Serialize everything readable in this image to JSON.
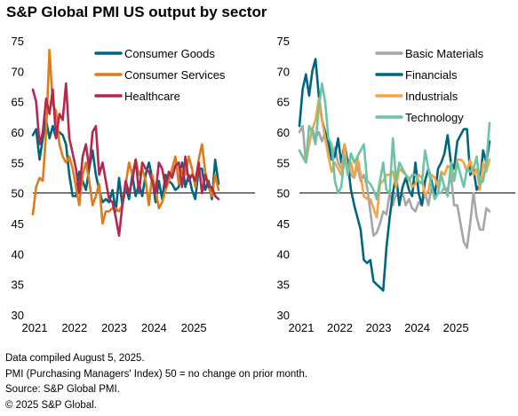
{
  "title": "S&P Global PMI US output by sector",
  "notes": {
    "compiled": "Data compiled August 5, 2025.",
    "pmi_def": "PMI (Purchasing Managers' Index) 50 =  no change on prior month.",
    "source": "Source: S&P Global PMI.",
    "copyright": "© 2025 S&P Global."
  },
  "chart_data": [
    {
      "type": "line",
      "ylim": [
        30,
        75
      ],
      "yticks": [
        30,
        35,
        40,
        45,
        50,
        55,
        60,
        65,
        70,
        75
      ],
      "xticks": [
        "2021",
        "2022",
        "2023",
        "2024",
        "2025"
      ],
      "reference_line": 50,
      "legend_position": "top-right",
      "series": [
        {
          "name": "Consumer Goods",
          "color": "#00667f",
          "values": [
            59.5,
            60.5,
            55.5,
            59,
            62,
            59,
            61,
            59,
            60,
            59.5,
            58,
            53,
            49.5,
            49.5,
            53.5,
            52,
            50.5,
            54,
            57,
            53,
            50.5,
            48.5,
            49,
            48.5,
            50.5,
            47,
            52.5,
            48,
            51,
            49,
            53,
            49.5,
            51.5,
            49.5,
            53,
            55,
            52.5,
            48.5,
            52,
            49,
            53,
            52,
            51.5,
            50.5,
            51,
            55,
            51,
            53,
            50.5,
            49,
            54,
            54,
            50.5,
            52,
            49,
            55.5,
            51.5
          ]
        },
        {
          "name": "Consumer Services",
          "color": "#e07b1a",
          "values": [
            46.5,
            51,
            52.5,
            52,
            60,
            73.5,
            64.5,
            63.5,
            58,
            56,
            55,
            56,
            54,
            51,
            48,
            53,
            55,
            52,
            48,
            49.5,
            51.5,
            45,
            47,
            47,
            47.5,
            47.5,
            47,
            48,
            51.5,
            55,
            53,
            55.5,
            53,
            54,
            52,
            48,
            53,
            50.5,
            47.5,
            48.5,
            50.5,
            52,
            54,
            56,
            51.5,
            54,
            53,
            56,
            54,
            51,
            55.5,
            58,
            53.5,
            51,
            49.5,
            53,
            50.5
          ]
        },
        {
          "name": "Healthcare",
          "color": "#b3294e",
          "values": [
            67,
            65,
            58,
            60,
            65.5,
            63,
            67,
            59,
            63,
            62,
            68,
            59,
            56.5,
            54,
            50,
            56,
            58,
            54,
            60,
            61,
            53,
            55,
            52,
            49,
            48.5,
            46,
            43,
            48,
            52,
            50,
            52,
            55.5,
            50,
            55,
            54,
            53.5,
            52,
            50,
            55,
            54,
            51,
            53.5,
            52.5,
            54.5,
            55,
            51,
            56,
            52,
            53,
            52,
            55,
            50,
            53,
            51,
            51,
            49.5,
            49
          ]
        }
      ]
    },
    {
      "type": "line",
      "ylim": [
        30,
        75
      ],
      "yticks": [
        30,
        35,
        40,
        45,
        50,
        55,
        60,
        65,
        70,
        75
      ],
      "xticks": [
        "2021",
        "2022",
        "2023",
        "2024",
        "2025"
      ],
      "reference_line": 50,
      "legend_position": "top-right",
      "series": [
        {
          "name": "Basic Materials",
          "color": "#a6a6a6",
          "values": [
            60,
            61,
            55,
            58,
            60.5,
            59,
            60,
            58.5,
            60,
            57.5,
            55.5,
            57.5,
            55,
            54,
            56.5,
            55.5,
            53,
            52.5,
            54.5,
            52,
            53,
            51,
            47,
            43,
            43.5,
            45,
            47,
            46.5,
            50,
            48,
            50,
            49,
            50,
            48,
            49,
            47.5,
            47,
            48.5,
            48,
            50,
            48,
            51,
            49.5,
            50,
            50,
            51,
            50.5,
            53,
            48,
            48,
            45,
            42,
            41,
            45,
            50,
            46,
            44,
            44,
            47.5,
            47
          ]
        },
        {
          "name": "Financials",
          "color": "#00667f",
          "values": [
            61,
            67,
            69.5,
            66,
            70,
            72,
            66,
            62,
            60,
            58.5,
            55.5,
            56,
            59,
            55,
            58,
            55,
            50.5,
            48,
            46,
            44,
            39,
            38.5,
            39,
            35.5,
            35,
            34.5,
            34,
            41,
            46,
            50,
            53,
            48,
            51,
            52.5,
            50.5,
            49.5,
            55,
            50,
            48,
            52,
            54,
            52,
            49.5,
            54,
            55,
            56.5,
            59.5,
            55,
            54,
            58.5,
            59.5,
            60.5,
            60.5,
            53,
            54,
            50.5,
            51.5,
            57,
            55,
            58.5
          ]
        },
        {
          "name": "Industrials",
          "color": "#f4a347",
          "values": [
            57,
            56,
            55,
            58,
            60.5,
            62,
            65.5,
            62,
            59,
            56,
            53.5,
            55,
            54,
            53,
            58,
            53,
            55,
            52.5,
            56,
            53,
            49.5,
            49,
            49,
            47.5,
            46,
            51.5,
            52,
            53,
            53,
            53.5,
            51,
            54,
            53.5,
            53,
            52.5,
            51,
            51.5,
            53,
            52.5,
            49.5,
            50.5,
            53,
            52.5,
            51,
            53.5,
            53,
            54.5,
            54,
            52,
            55.5,
            55.5,
            55,
            53.5,
            55.5,
            53,
            54,
            50.5,
            55,
            53.5,
            55.5
          ]
        },
        {
          "name": "Technology",
          "color": "#6cc4a4",
          "values": [
            57,
            56,
            55,
            61,
            60,
            58,
            64,
            68,
            65,
            59,
            58,
            52,
            50,
            51,
            56,
            53,
            56.5,
            55,
            56,
            57,
            58,
            52,
            51.5,
            50.5,
            49,
            52,
            55,
            50.5,
            50,
            59,
            52,
            55,
            54,
            53,
            52,
            53,
            53,
            52,
            51.5,
            57,
            54,
            51,
            49,
            50,
            53,
            51,
            49.5,
            55,
            52,
            55,
            53,
            51,
            54,
            53.5,
            54,
            56,
            51.5,
            52,
            55,
            61.5
          ]
        }
      ]
    }
  ]
}
